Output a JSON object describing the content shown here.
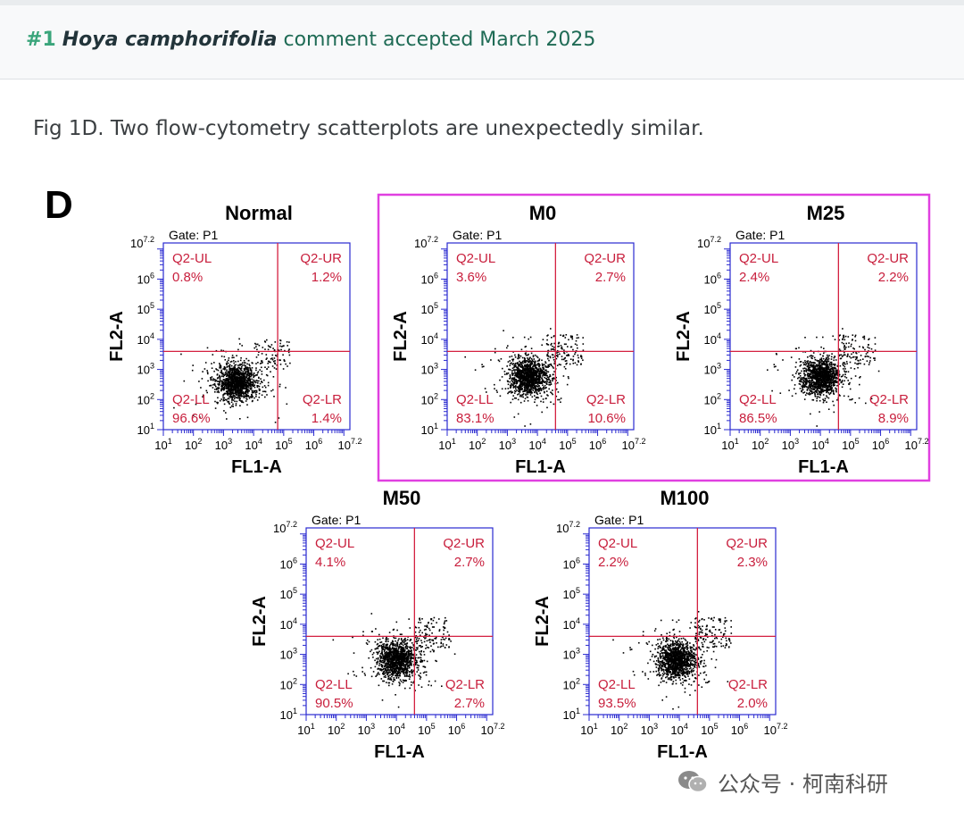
{
  "header": {
    "number": "#1",
    "species": "Hoya camphorifolia",
    "status": "comment accepted March 2025"
  },
  "caption": "Fig 1D. Two flow-cytometry scatterplots are unexpectedly similar.",
  "figure": {
    "panel_letter": "D",
    "gate_label": "Gate: P1",
    "highlight_color": "#e040e0",
    "gate_line_color": "#d42040",
    "axis_color": "#2a2ad0",
    "quadrant_text_color": "#c81e3c",
    "xlabel": "FL1-A",
    "ylabel": "FL2-A",
    "tick_labels": [
      "10",
      "10",
      "10",
      "10",
      "10",
      "10",
      "10"
    ],
    "tick_exps": [
      "1",
      "2",
      "3",
      "4",
      "5",
      "6",
      "7.2"
    ],
    "highlighted_panels": [
      "M0",
      "M25"
    ]
  },
  "chart_data": [
    {
      "type": "scatter",
      "title": "Normal",
      "xlabel": "FL1-A",
      "ylabel": "FL2-A",
      "xscale": "log",
      "yscale": "log",
      "xlim": [
        10,
        15800000
      ],
      "ylim": [
        10,
        15800000
      ],
      "gate": "P1",
      "cluster_center": [
        2500,
        400
      ],
      "quadrants": {
        "Q2-UL": "0.8%",
        "Q2-UR": "1.2%",
        "Q2-LL": "96.6%",
        "Q2-LR": "1.4%"
      }
    },
    {
      "type": "scatter",
      "title": "M0",
      "xlabel": "FL1-A",
      "ylabel": "FL2-A",
      "xscale": "log",
      "yscale": "log",
      "xlim": [
        10,
        15800000
      ],
      "ylim": [
        10,
        15800000
      ],
      "gate": "P1",
      "cluster_center": [
        5000,
        600
      ],
      "quadrants": {
        "Q2-UL": "3.6%",
        "Q2-UR": "2.7%",
        "Q2-LL": "83.1%",
        "Q2-LR": "10.6%"
      }
    },
    {
      "type": "scatter",
      "title": "M25",
      "xlabel": "FL1-A",
      "ylabel": "FL2-A",
      "xscale": "log",
      "yscale": "log",
      "xlim": [
        10,
        15800000
      ],
      "ylim": [
        10,
        15800000
      ],
      "gate": "P1",
      "cluster_center": [
        10000,
        600
      ],
      "quadrants": {
        "Q2-UL": "2.4%",
        "Q2-UR": "2.2%",
        "Q2-LL": "86.5%",
        "Q2-LR": "8.9%"
      }
    },
    {
      "type": "scatter",
      "title": "M50",
      "xlabel": "FL1-A",
      "ylabel": "FL2-A",
      "xscale": "log",
      "yscale": "log",
      "xlim": [
        10,
        15800000
      ],
      "ylim": [
        10,
        15800000
      ],
      "gate": "P1",
      "cluster_center": [
        10000,
        700
      ],
      "quadrants": {
        "Q2-UL": "4.1%",
        "Q2-UR": "2.7%",
        "Q2-LL": "90.5%",
        "Q2-LR": "2.7%"
      }
    },
    {
      "type": "scatter",
      "title": "M100",
      "xlabel": "FL1-A",
      "ylabel": "FL2-A",
      "xscale": "log",
      "yscale": "log",
      "xlim": [
        10,
        15800000
      ],
      "ylim": [
        10,
        15800000
      ],
      "gate": "P1",
      "cluster_center": [
        8000,
        700
      ],
      "quadrants": {
        "Q2-UL": "2.2%",
        "Q2-UR": "2.3%",
        "Q2-LL": "93.5%",
        "Q2-LR": "2.0%"
      }
    }
  ],
  "watermark": {
    "text": "公众号 · 柯南科研",
    "icon": "wechat-icon"
  }
}
